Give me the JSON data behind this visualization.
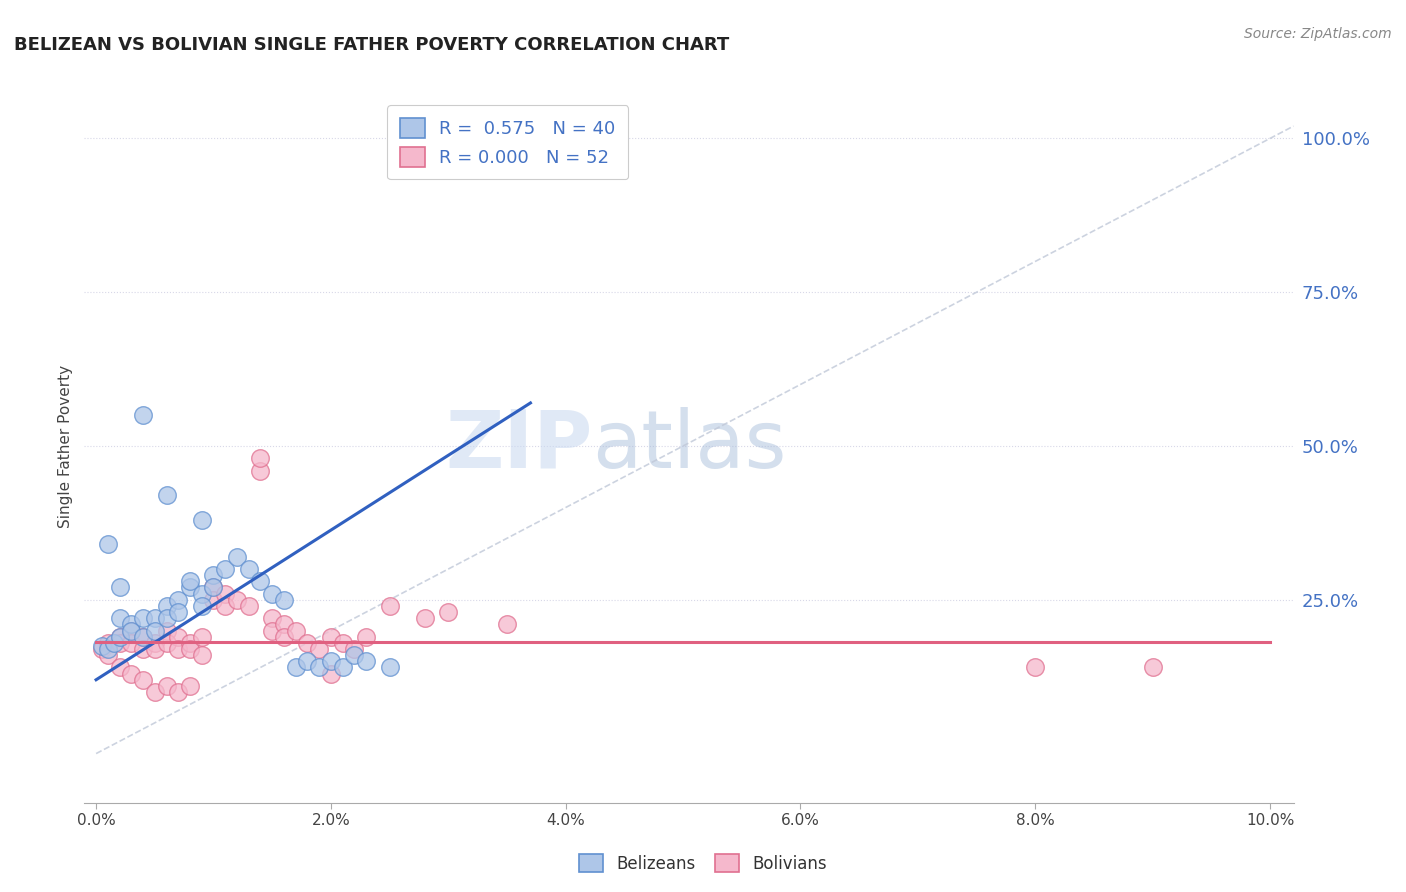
{
  "title": "BELIZEAN VS BOLIVIAN SINGLE FATHER POVERTY CORRELATION CHART",
  "source": "Source: ZipAtlas.com",
  "ylabel": "Single Father Poverty",
  "xlim": [
    -0.001,
    0.102
  ],
  "ylim": [
    -0.08,
    1.08
  ],
  "xtick_labels": [
    "0.0%",
    "2.0%",
    "4.0%",
    "6.0%",
    "8.0%",
    "10.0%"
  ],
  "xtick_vals": [
    0.0,
    0.02,
    0.04,
    0.06,
    0.08,
    0.1
  ],
  "ytick_right_labels": [
    "25.0%",
    "50.0%",
    "75.0%",
    "100.0%"
  ],
  "ytick_right_vals": [
    0.25,
    0.5,
    0.75,
    1.0
  ],
  "legend_labels": [
    "Belizeans",
    "Bolivians"
  ],
  "legend_r": [
    "R =  0.575",
    "R = 0.000"
  ],
  "legend_n": [
    "N = 40",
    "N = 52"
  ],
  "blue_color": "#aec6e8",
  "pink_color": "#f5b8cc",
  "blue_edge_color": "#6090d0",
  "pink_edge_color": "#e07090",
  "blue_line_color": "#3060c0",
  "pink_line_color": "#e06080",
  "blue_scatter": [
    [
      0.0005,
      0.175
    ],
    [
      0.001,
      0.17
    ],
    [
      0.0015,
      0.18
    ],
    [
      0.002,
      0.19
    ],
    [
      0.002,
      0.22
    ],
    [
      0.003,
      0.21
    ],
    [
      0.003,
      0.2
    ],
    [
      0.004,
      0.22
    ],
    [
      0.004,
      0.19
    ],
    [
      0.005,
      0.22
    ],
    [
      0.005,
      0.2
    ],
    [
      0.006,
      0.24
    ],
    [
      0.006,
      0.22
    ],
    [
      0.007,
      0.25
    ],
    [
      0.007,
      0.23
    ],
    [
      0.008,
      0.27
    ],
    [
      0.008,
      0.28
    ],
    [
      0.009,
      0.26
    ],
    [
      0.009,
      0.24
    ],
    [
      0.01,
      0.29
    ],
    [
      0.01,
      0.27
    ],
    [
      0.011,
      0.3
    ],
    [
      0.012,
      0.32
    ],
    [
      0.013,
      0.3
    ],
    [
      0.014,
      0.28
    ],
    [
      0.015,
      0.26
    ],
    [
      0.016,
      0.25
    ],
    [
      0.017,
      0.14
    ],
    [
      0.018,
      0.15
    ],
    [
      0.019,
      0.14
    ],
    [
      0.02,
      0.15
    ],
    [
      0.021,
      0.14
    ],
    [
      0.022,
      0.16
    ],
    [
      0.023,
      0.15
    ],
    [
      0.025,
      0.14
    ],
    [
      0.006,
      0.42
    ],
    [
      0.009,
      0.38
    ],
    [
      0.001,
      0.34
    ],
    [
      0.004,
      0.55
    ],
    [
      0.002,
      0.27
    ]
  ],
  "pink_scatter": [
    [
      0.0005,
      0.17
    ],
    [
      0.001,
      0.18
    ],
    [
      0.001,
      0.16
    ],
    [
      0.002,
      0.19
    ],
    [
      0.002,
      0.18
    ],
    [
      0.003,
      0.2
    ],
    [
      0.003,
      0.18
    ],
    [
      0.004,
      0.19
    ],
    [
      0.004,
      0.17
    ],
    [
      0.005,
      0.18
    ],
    [
      0.005,
      0.17
    ],
    [
      0.006,
      0.2
    ],
    [
      0.006,
      0.18
    ],
    [
      0.007,
      0.19
    ],
    [
      0.007,
      0.17
    ],
    [
      0.008,
      0.18
    ],
    [
      0.008,
      0.17
    ],
    [
      0.009,
      0.19
    ],
    [
      0.009,
      0.16
    ],
    [
      0.01,
      0.27
    ],
    [
      0.01,
      0.25
    ],
    [
      0.011,
      0.26
    ],
    [
      0.011,
      0.24
    ],
    [
      0.012,
      0.25
    ],
    [
      0.013,
      0.24
    ],
    [
      0.014,
      0.46
    ],
    [
      0.014,
      0.48
    ],
    [
      0.015,
      0.22
    ],
    [
      0.015,
      0.2
    ],
    [
      0.016,
      0.21
    ],
    [
      0.016,
      0.19
    ],
    [
      0.017,
      0.2
    ],
    [
      0.018,
      0.18
    ],
    [
      0.019,
      0.17
    ],
    [
      0.02,
      0.19
    ],
    [
      0.021,
      0.18
    ],
    [
      0.022,
      0.17
    ],
    [
      0.023,
      0.19
    ],
    [
      0.025,
      0.24
    ],
    [
      0.028,
      0.22
    ],
    [
      0.03,
      0.23
    ],
    [
      0.035,
      0.21
    ],
    [
      0.002,
      0.14
    ],
    [
      0.003,
      0.13
    ],
    [
      0.004,
      0.12
    ],
    [
      0.005,
      0.1
    ],
    [
      0.006,
      0.11
    ],
    [
      0.007,
      0.1
    ],
    [
      0.008,
      0.11
    ],
    [
      0.08,
      0.14
    ],
    [
      0.09,
      0.14
    ],
    [
      0.02,
      0.13
    ]
  ],
  "blue_trend_x": [
    0.0,
    0.037
  ],
  "blue_trend_y": [
    0.12,
    0.57
  ],
  "pink_trend_y": 0.182,
  "ref_line_x": [
    0.0,
    0.102
  ],
  "ref_line_y": [
    0.0,
    1.02
  ],
  "watermark_zip": "ZIP",
  "watermark_atlas": "atlas",
  "background_color": "#ffffff",
  "grid_color": "#d8d8e8",
  "grid_linestyle": "dotted"
}
